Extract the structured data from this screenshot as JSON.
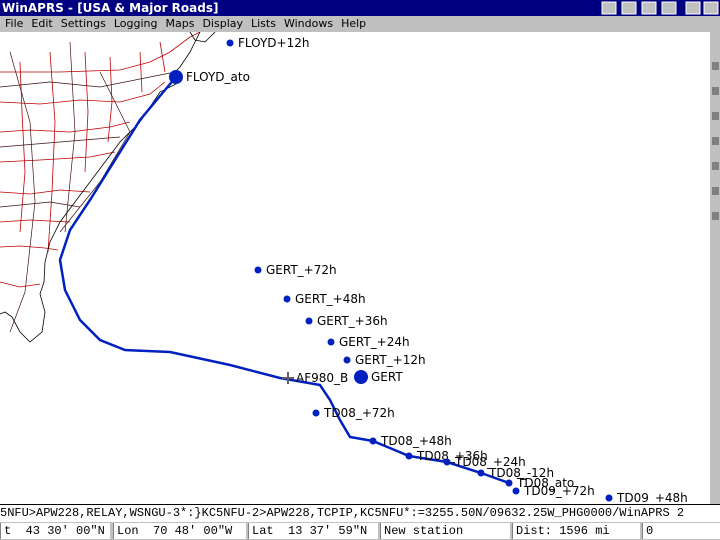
{
  "window": {
    "title": "WinAPRS - [USA & Major Roads]",
    "menu": [
      "File",
      "Edit",
      "Settings",
      "Logging",
      "Maps",
      "Display",
      "Lists",
      "Windows",
      "Help"
    ]
  },
  "map": {
    "stations": [
      "FLOYD+12h",
      "FLOYD_ato",
      "GERT_+72h",
      "GERT_+48h",
      "GERT_+36h",
      "GERT_+24h",
      "GERT_+12h",
      "GERT",
      "AF980_B",
      "TD08_+72h",
      "TD08_+48h",
      "TD08_+36h",
      "TD08_+24h",
      "TD08_-12h",
      "TD08_ato",
      "TD09_+72h",
      "TD09_+48h"
    ]
  },
  "status": {
    "packet": "5NFU>APW228,RELAY,WSNGU-3*:}KC5NFU-2>APW228,TCPIP,KC5NFU*:=3255.50N/09632.25W_PHG0000/WinAPRS 2",
    "cells": [
      "t  43 30' 00\"N",
      "Lon  70 48' 00\"W",
      "Lat  13 37' 59\"N",
      "New station",
      "Dist: 1596 mi",
      "0"
    ]
  }
}
